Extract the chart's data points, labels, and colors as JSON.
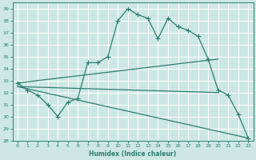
{
  "xlabel": "Humidex (Indice chaleur)",
  "xlim": [
    -0.5,
    23.5
  ],
  "ylim": [
    28,
    39.5
  ],
  "yticks": [
    28,
    29,
    30,
    31,
    32,
    33,
    34,
    35,
    36,
    37,
    38,
    39
  ],
  "xticks": [
    0,
    1,
    2,
    3,
    4,
    5,
    6,
    7,
    8,
    9,
    10,
    11,
    12,
    13,
    14,
    15,
    16,
    17,
    18,
    19,
    20,
    21,
    22,
    23
  ],
  "bg_color": "#cde8e4",
  "grid_color": "#b0d8d2",
  "line_color": "#2e7d6e",
  "main_line": {
    "x": [
      0,
      1,
      2,
      3,
      4,
      5,
      6,
      7,
      8,
      9,
      10,
      11,
      12,
      13,
      14,
      15,
      16,
      17,
      18,
      19,
      20,
      21,
      22,
      23
    ],
    "y": [
      32.8,
      32.2,
      31.8,
      31.0,
      30.0,
      31.2,
      31.5,
      34.5,
      34.5,
      35.0,
      38.0,
      39.0,
      38.5,
      38.2,
      36.5,
      38.2,
      37.5,
      37.2,
      36.7,
      34.8,
      32.2,
      31.8,
      30.2,
      28.2
    ]
  },
  "trend_lines": [
    {
      "x": [
        0,
        20
      ],
      "y": [
        32.8,
        34.8
      ]
    },
    {
      "x": [
        0,
        20
      ],
      "y": [
        32.5,
        32.0
      ]
    },
    {
      "x": [
        0,
        23
      ],
      "y": [
        32.5,
        28.2
      ]
    }
  ]
}
